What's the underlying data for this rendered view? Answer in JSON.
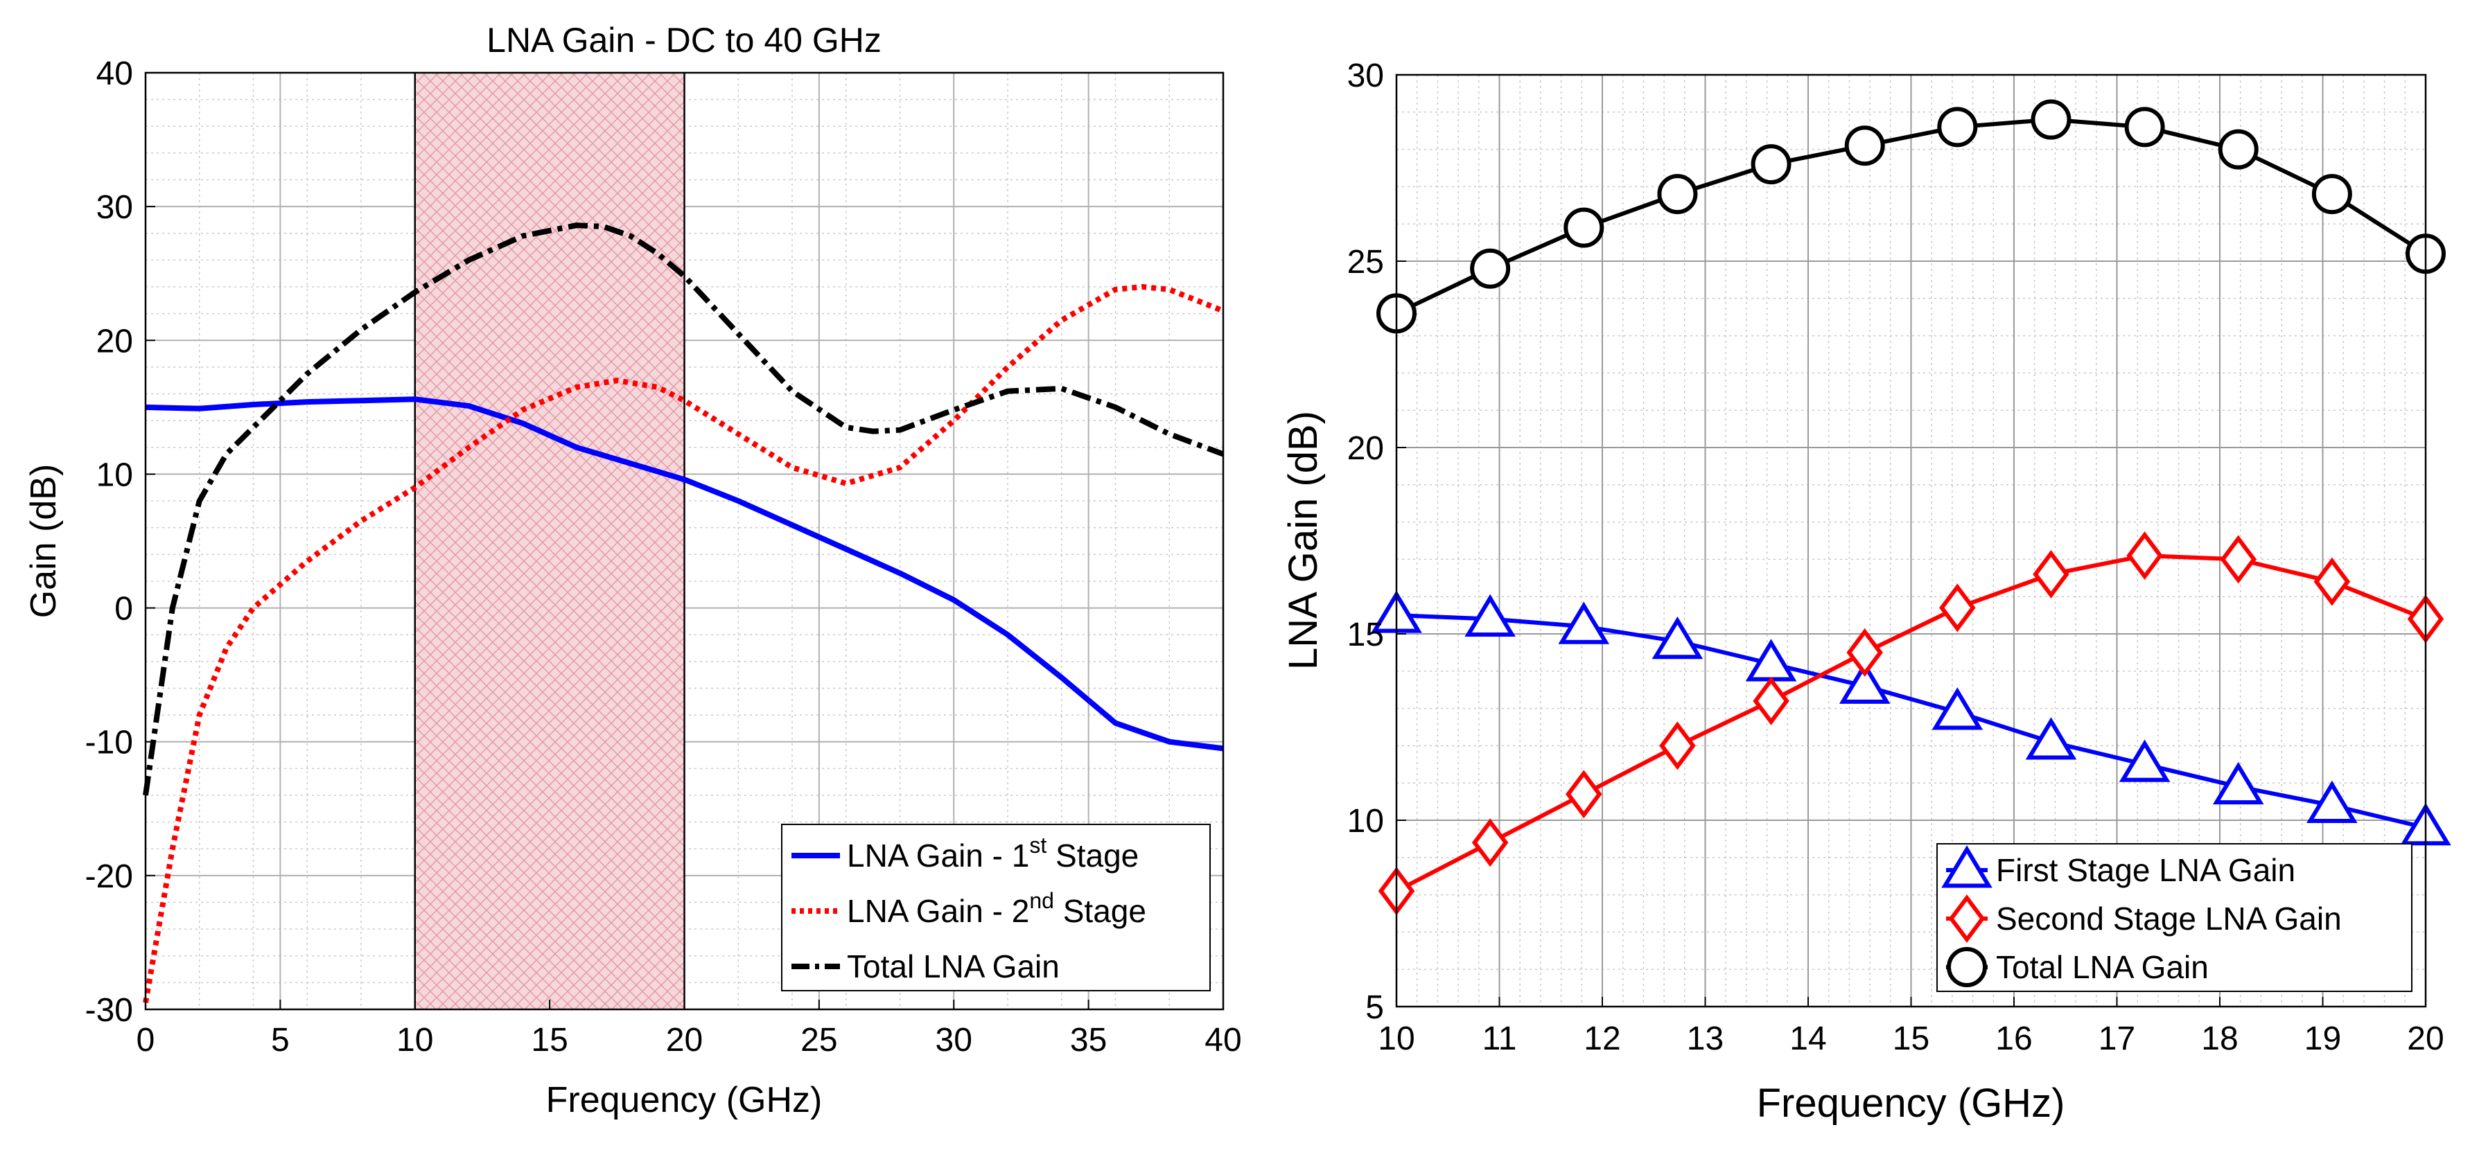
{
  "chart_data": [
    {
      "type": "line",
      "title": "LNA Gain - DC to 40 GHz",
      "xlabel": "Frequency (GHz)",
      "ylabel": "Gain (dB)",
      "xlim": [
        0,
        40
      ],
      "ylim": [
        -30,
        40
      ],
      "xticks": [
        "0",
        "5",
        "10",
        "15",
        "20",
        "25",
        "30",
        "35",
        "40"
      ],
      "yticks": [
        "-30",
        "-20",
        "-10",
        "0",
        "10",
        "20",
        "30",
        "40"
      ],
      "grid": true,
      "shaded_band": {
        "x_start": 10,
        "x_end": 20,
        "fill": "#f6d8dc",
        "hatch": "#e39aa4"
      },
      "legend_position": "bottom-right",
      "series": [
        {
          "name": "LNA Gain - 1st Stage",
          "legend_main": "LNA Gain - 1",
          "legend_sup": "st",
          "legend_tail": " Stage",
          "color": "#0000ff",
          "style": "solid",
          "x": [
            0,
            2,
            4,
            6,
            8,
            10,
            12,
            14,
            16,
            18,
            20,
            22,
            24,
            26,
            28,
            30,
            32,
            34,
            36,
            38,
            40
          ],
          "y": [
            15,
            14.9,
            15.2,
            15.4,
            15.5,
            15.6,
            15.1,
            13.8,
            12.0,
            10.8,
            9.6,
            8.0,
            6.2,
            4.4,
            2.6,
            0.6,
            -2.0,
            -5.2,
            -8.6,
            -10.0,
            -10.5
          ]
        },
        {
          "name": "LNA Gain - 2nd Stage",
          "legend_main": "LNA Gain - 2",
          "legend_sup": "nd",
          "legend_tail": " Stage",
          "color": "#ff0000",
          "style": "dotted",
          "x": [
            0,
            1,
            2,
            3,
            4,
            6,
            8,
            10,
            12,
            14,
            16,
            17.5,
            19,
            20,
            22,
            24,
            26,
            28,
            30,
            32,
            34,
            36,
            37,
            38,
            40
          ],
          "y": [
            -29.5,
            -18,
            -8,
            -3,
            0,
            3.5,
            6.5,
            9.0,
            12.0,
            14.8,
            16.5,
            17.0,
            16.5,
            15.5,
            13.0,
            10.5,
            9.3,
            10.5,
            14.0,
            18.0,
            21.5,
            23.8,
            24.0,
            23.8,
            22.2
          ]
        },
        {
          "name": "Total LNA Gain",
          "legend_main": "Total LNA Gain",
          "color": "#000000",
          "style": "dashdot",
          "x": [
            0,
            1,
            2,
            3,
            4,
            5,
            6,
            8,
            10,
            12,
            14,
            16,
            17,
            18,
            19,
            20,
            22,
            24,
            26,
            27,
            28,
            30,
            32,
            34,
            36,
            38,
            40
          ],
          "y": [
            -14,
            0,
            8,
            11.5,
            13.5,
            15.5,
            17.5,
            20.8,
            23.6,
            26.0,
            27.8,
            28.6,
            28.5,
            27.8,
            26.5,
            24.8,
            20.5,
            16.2,
            13.5,
            13.2,
            13.3,
            14.8,
            16.2,
            16.4,
            15.0,
            13.0,
            11.5
          ]
        }
      ]
    },
    {
      "type": "line",
      "title": "",
      "xlabel": "Frequency (GHz)",
      "ylabel": "LNA Gain (dB)",
      "xlim": [
        10,
        20
      ],
      "ylim": [
        5,
        30
      ],
      "xticks": [
        "10",
        "11",
        "12",
        "13",
        "14",
        "15",
        "16",
        "17",
        "18",
        "19",
        "20"
      ],
      "yticks": [
        "5",
        "10",
        "15",
        "20",
        "25",
        "30"
      ],
      "grid": true,
      "legend_position": "bottom-right",
      "series": [
        {
          "name": "First Stage LNA Gain",
          "color": "#0000ff",
          "marker": "triangle",
          "x": [
            10,
            10.91,
            11.82,
            12.73,
            13.64,
            14.55,
            15.45,
            16.36,
            17.27,
            18.18,
            19.09,
            20
          ],
          "y": [
            15.5,
            15.4,
            15.2,
            14.8,
            14.2,
            13.6,
            12.9,
            12.1,
            11.5,
            10.9,
            10.4,
            9.8
          ]
        },
        {
          "name": "Second Stage LNA Gain",
          "color": "#ff0000",
          "marker": "diamond",
          "x": [
            10,
            10.91,
            11.82,
            12.73,
            13.64,
            14.55,
            15.45,
            16.36,
            17.27,
            18.18,
            19.09,
            20
          ],
          "y": [
            8.1,
            9.4,
            10.7,
            12.0,
            13.2,
            14.5,
            15.7,
            16.6,
            17.1,
            17.0,
            16.4,
            15.4
          ]
        },
        {
          "name": "Total LNA Gain",
          "color": "#000000",
          "marker": "circle",
          "x": [
            10,
            10.91,
            11.82,
            12.73,
            13.64,
            14.55,
            15.45,
            16.36,
            17.27,
            18.18,
            19.09,
            20
          ],
          "y": [
            23.6,
            24.8,
            25.9,
            26.8,
            27.6,
            28.1,
            28.6,
            28.8,
            28.6,
            28.0,
            26.8,
            25.2
          ]
        }
      ]
    }
  ]
}
